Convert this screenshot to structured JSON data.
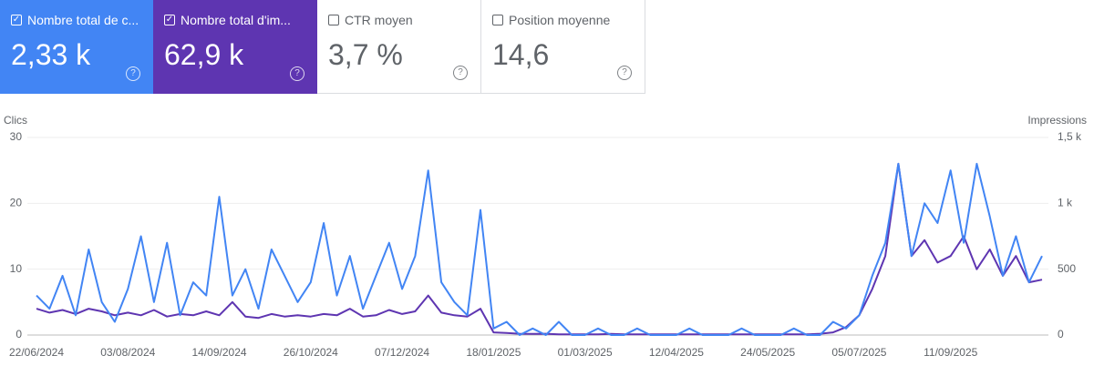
{
  "cards": [
    {
      "title": "Nombre total de c...",
      "value": "2,33 k"
    },
    {
      "title": "Nombre total d'im...",
      "value": "62,9 k"
    },
    {
      "title": "CTR moyen",
      "value": "3,7 %"
    },
    {
      "title": "Position moyenne",
      "value": "14,6"
    }
  ],
  "chart_data": {
    "type": "line",
    "y_label": "Clics",
    "y2_label": "Impressions",
    "categories": [
      "22/06/2024",
      null,
      null,
      null,
      null,
      null,
      null,
      "03/08/2024",
      null,
      null,
      null,
      null,
      null,
      null,
      "14/09/2024",
      null,
      null,
      null,
      null,
      null,
      null,
      "26/10/2024",
      null,
      null,
      null,
      null,
      null,
      null,
      "07/12/2024",
      null,
      null,
      null,
      null,
      null,
      null,
      "18/01/2025",
      null,
      null,
      null,
      null,
      null,
      null,
      "01/03/2025",
      null,
      null,
      null,
      null,
      null,
      null,
      "12/04/2025",
      null,
      null,
      null,
      null,
      null,
      null,
      "24/05/2025",
      null,
      null,
      null,
      null,
      null,
      null,
      "05/07/2025",
      null,
      null,
      null,
      null,
      null,
      null,
      "11/09/2025",
      null,
      null,
      null,
      null,
      null,
      null,
      null
    ],
    "series": [
      {
        "color": "#4285f4",
        "axis": "y",
        "values": [
          6,
          4,
          9,
          3,
          13,
          5,
          2,
          7,
          15,
          5,
          14,
          3,
          8,
          6,
          21,
          6,
          10,
          4,
          13,
          9,
          5,
          8,
          17,
          6,
          12,
          4,
          9,
          14,
          7,
          12,
          25,
          8,
          5,
          3,
          19,
          1,
          2,
          0,
          1,
          0,
          2,
          0,
          0,
          1,
          0,
          0,
          1,
          0,
          0,
          0,
          1,
          0,
          0,
          0,
          1,
          0,
          0,
          0,
          1,
          0,
          0,
          2,
          1,
          3,
          9,
          14,
          26,
          12,
          20,
          17,
          25,
          14,
          26,
          18,
          9,
          15,
          8,
          12
        ]
      },
      {
        "color": "#5e35b1",
        "axis": "y2",
        "values": [
          200,
          170,
          190,
          160,
          200,
          180,
          150,
          170,
          150,
          190,
          140,
          160,
          150,
          180,
          150,
          250,
          140,
          130,
          160,
          140,
          150,
          140,
          160,
          150,
          200,
          140,
          150,
          190,
          160,
          180,
          300,
          170,
          150,
          140,
          200,
          20,
          15,
          10,
          8,
          10,
          5,
          5,
          5,
          5,
          8,
          5,
          5,
          5,
          5,
          5,
          5,
          5,
          5,
          5,
          5,
          5,
          5,
          5,
          5,
          5,
          10,
          20,
          60,
          150,
          350,
          600,
          1300,
          600,
          720,
          550,
          600,
          750,
          500,
          650,
          450,
          600,
          400,
          420
        ]
      }
    ],
    "ylim": [
      0,
      30
    ],
    "yticks": [
      0,
      10,
      20,
      30
    ],
    "y2lim": [
      0,
      1500
    ],
    "y2ticks": [
      0,
      500,
      {
        "value": 1000,
        "label": "1 k"
      },
      {
        "value": 1500,
        "label": "1,5 k"
      }
    ],
    "grid": true
  }
}
